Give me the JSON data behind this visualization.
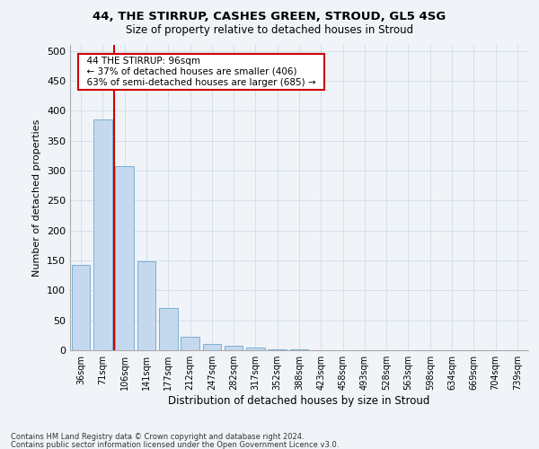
{
  "title1": "44, THE STIRRUP, CASHES GREEN, STROUD, GL5 4SG",
  "title2": "Size of property relative to detached houses in Stroud",
  "xlabel": "Distribution of detached houses by size in Stroud",
  "ylabel": "Number of detached properties",
  "bar_color": "#c5d9ee",
  "bar_edge_color": "#7aafd4",
  "vline_color": "#cc0000",
  "categories": [
    "36sqm",
    "71sqm",
    "106sqm",
    "141sqm",
    "177sqm",
    "212sqm",
    "247sqm",
    "282sqm",
    "317sqm",
    "352sqm",
    "388sqm",
    "423sqm",
    "458sqm",
    "493sqm",
    "528sqm",
    "563sqm",
    "598sqm",
    "634sqm",
    "669sqm",
    "704sqm",
    "739sqm"
  ],
  "values": [
    143,
    385,
    307,
    148,
    70,
    22,
    10,
    8,
    5,
    2,
    2,
    0,
    0,
    0,
    0,
    0,
    0,
    0,
    0,
    0,
    0
  ],
  "ylim": [
    0,
    510
  ],
  "yticks": [
    0,
    50,
    100,
    150,
    200,
    250,
    300,
    350,
    400,
    450,
    500
  ],
  "annotation_title": "44 THE STIRRUP: 96sqm",
  "annotation_line1": "← 37% of detached houses are smaller (406)",
  "annotation_line2": "63% of semi-detached houses are larger (685) →",
  "footnote1": "Contains HM Land Registry data © Crown copyright and database right 2024.",
  "footnote2": "Contains public sector information licensed under the Open Government Licence v3.0.",
  "background_color": "#f0f4f8",
  "grid_color": "#c8d8e8"
}
